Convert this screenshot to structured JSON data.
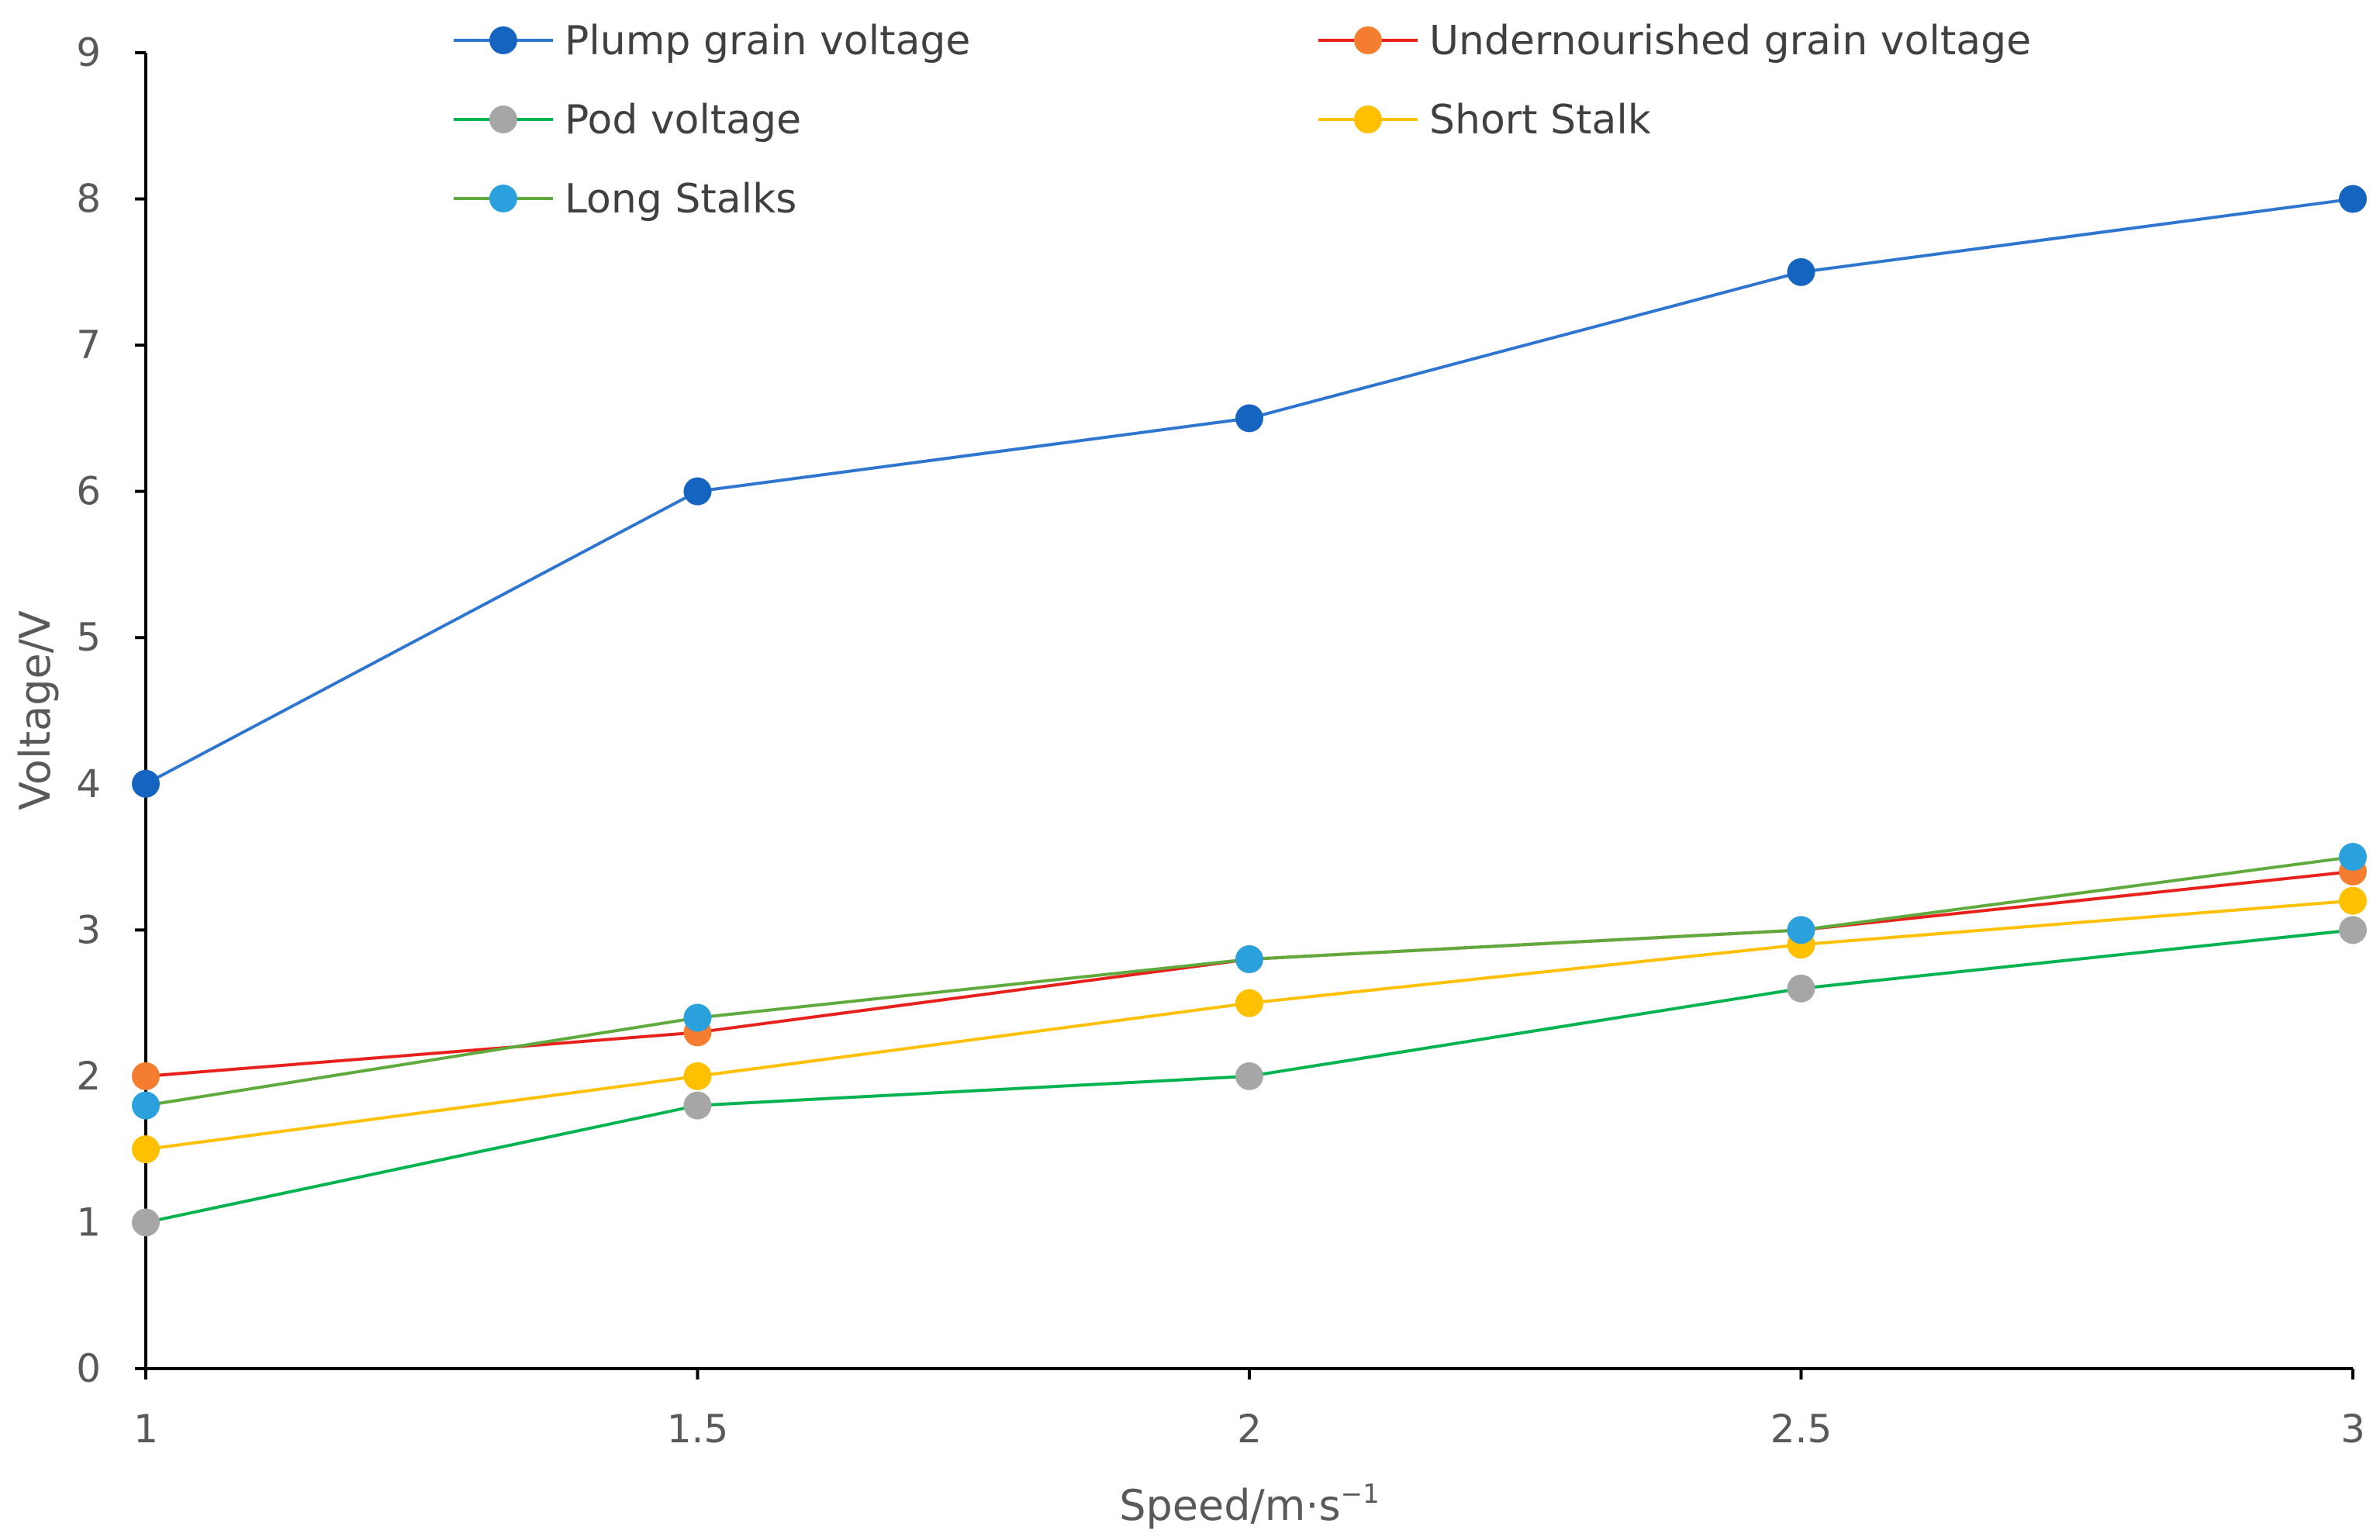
{
  "chart_data": {
    "type": "line",
    "title": "",
    "xlabel": "Speed/m·s",
    "xlabel_superscript": "−1",
    "ylabel": "Voltage/V",
    "x": [
      1,
      1.5,
      2,
      2.5,
      3
    ],
    "x_tick_labels": [
      "1",
      "1.5",
      "2",
      "2.5",
      "3"
    ],
    "xlim": [
      1,
      3
    ],
    "ylim": [
      0,
      9
    ],
    "y_ticks": [
      0,
      1,
      2,
      3,
      4,
      5,
      6,
      7,
      8,
      9
    ],
    "y_tick_labels": [
      "0",
      "1",
      "2",
      "3",
      "4",
      "5",
      "6",
      "7",
      "8",
      "9"
    ],
    "grid": false,
    "legend_position": "top",
    "series": [
      {
        "name": "Plump grain voltage",
        "values": [
          4.0,
          6.0,
          6.5,
          7.5,
          8.0
        ],
        "line_color": "#2e75d0",
        "marker_color": "#1565c0"
      },
      {
        "name": "Undernourished grain voltage",
        "values": [
          2.0,
          2.3,
          2.8,
          3.0,
          3.4
        ],
        "line_color": "#e8201b",
        "marker_color": "#f47d30"
      },
      {
        "name": "Pod voltage",
        "values": [
          1.0,
          1.8,
          2.0,
          2.6,
          3.0
        ],
        "line_color": "#00b34f",
        "marker_color": "#a6a6a6"
      },
      {
        "name": "Short Stalk",
        "values": [
          1.5,
          2.0,
          2.5,
          2.9,
          3.2
        ],
        "line_color": "#ffc000",
        "marker_color": "#ffc000"
      },
      {
        "name": "Long Stalks",
        "values": [
          1.8,
          2.4,
          2.8,
          3.0,
          3.5
        ],
        "line_color": "#5eaa3c",
        "marker_color": "#2aa0dc"
      }
    ]
  }
}
